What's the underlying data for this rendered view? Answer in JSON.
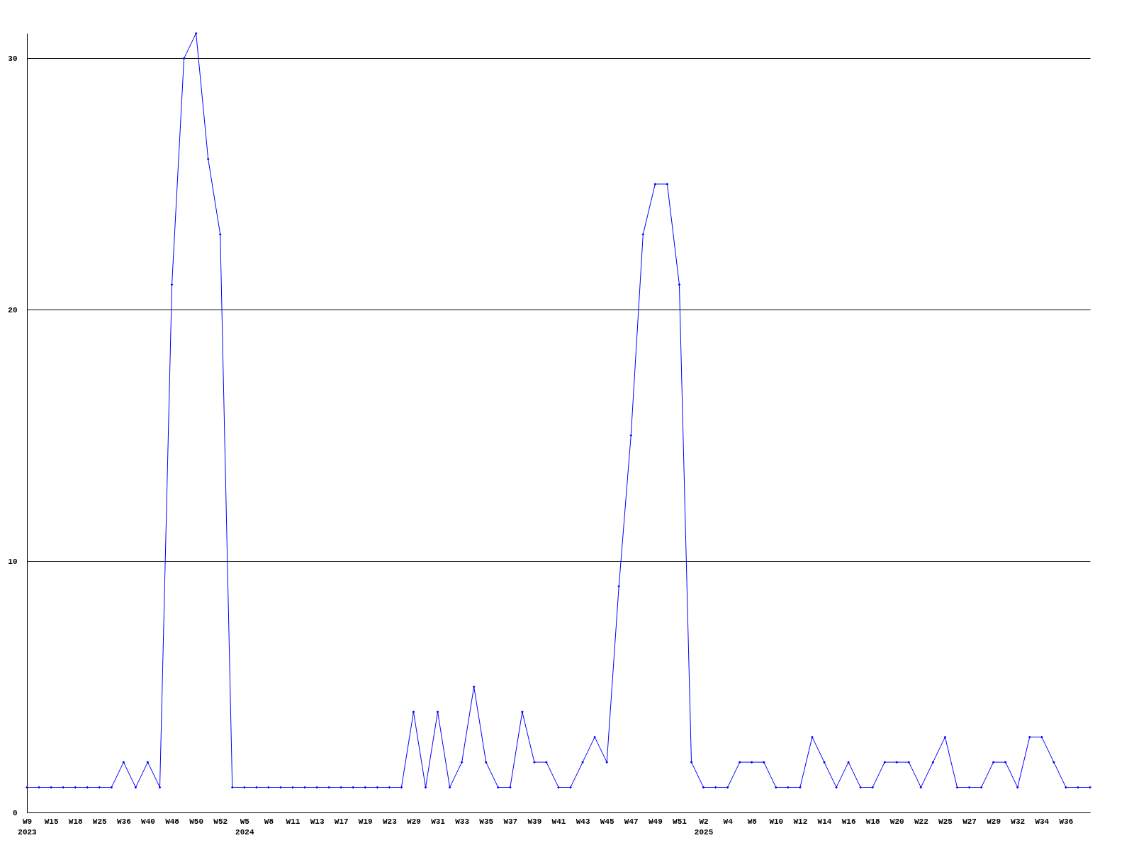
{
  "chart_data": {
    "type": "line",
    "categories": [
      "W9\n2023",
      null,
      "W15",
      null,
      "W18",
      null,
      "W25",
      null,
      "W36",
      null,
      "W40",
      null,
      "W48",
      null,
      "W50",
      null,
      "W52",
      null,
      "W5\n2024",
      null,
      "W8",
      null,
      "W11",
      null,
      "W13",
      null,
      "W17",
      null,
      "W19",
      null,
      "W23",
      null,
      "W29",
      null,
      "W31",
      null,
      "W33",
      null,
      "W35",
      null,
      "W37",
      null,
      "W39",
      null,
      "W41",
      null,
      "W43",
      null,
      "W45",
      null,
      "W47",
      null,
      "W49",
      null,
      "W51",
      null,
      "W2\n2025",
      null,
      "W4",
      null,
      "W8",
      null,
      "W10",
      null,
      "W12",
      null,
      "W14",
      null,
      "W16",
      null,
      "W18",
      null,
      "W20",
      null,
      "W22",
      null,
      "W25",
      null,
      "W27",
      null,
      "W29",
      null,
      "W32",
      null,
      "W34",
      null,
      "W36",
      null,
      null
    ],
    "series": [
      {
        "color": "#0000ff",
        "values": [
          1,
          1,
          1,
          1,
          1,
          1,
          1,
          1,
          2,
          1,
          2,
          1,
          21,
          30,
          31,
          26,
          23,
          1,
          1,
          1,
          1,
          1,
          1,
          1,
          1,
          1,
          1,
          1,
          1,
          1,
          1,
          1,
          4,
          1,
          4,
          1,
          2,
          5,
          2,
          1,
          1,
          4,
          2,
          2,
          1,
          1,
          2,
          3,
          2,
          9,
          15,
          23,
          25,
          25,
          21,
          2,
          1,
          1,
          1,
          2,
          2,
          2,
          1,
          1,
          1,
          3,
          2,
          1,
          2,
          1,
          1,
          2,
          2,
          2,
          1,
          2,
          3,
          1,
          1,
          1,
          2,
          2,
          1,
          3,
          3,
          2,
          1,
          1,
          1
        ]
      }
    ],
    "ylim": [
      0,
      31
    ],
    "yticks": [
      0,
      10,
      20,
      30
    ],
    "grid": "y",
    "marker": "diamond",
    "line_style": "solid"
  }
}
